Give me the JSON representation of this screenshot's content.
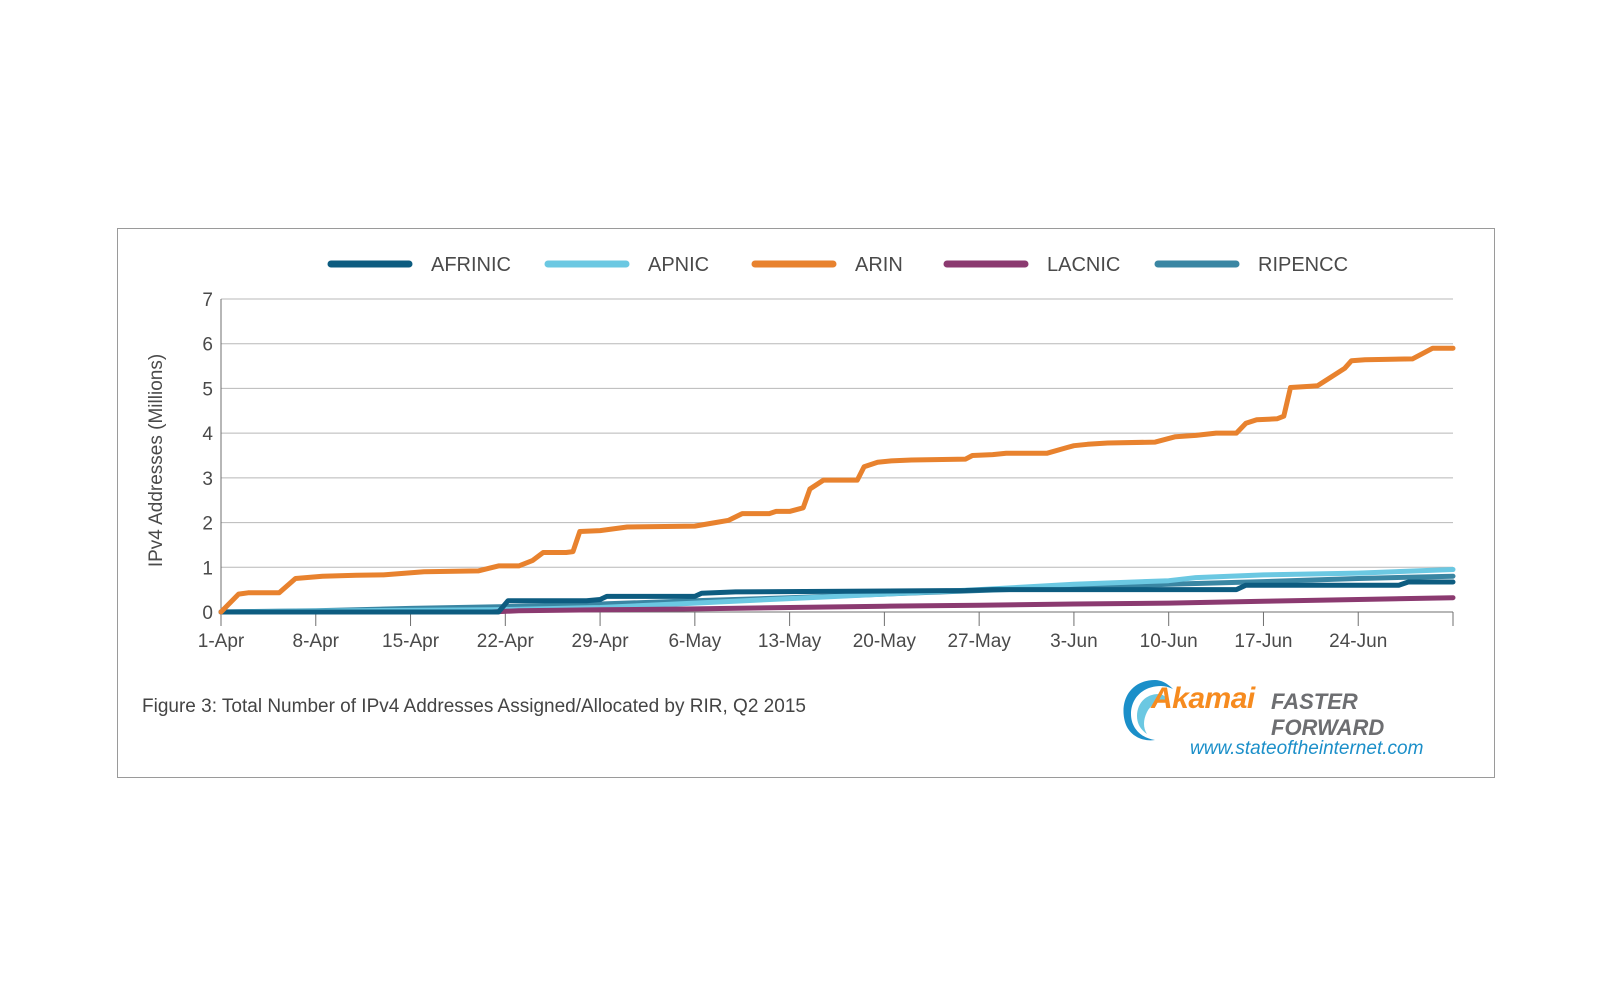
{
  "caption": "Figure 3: Total Number of IPv4 Addresses Assigned/Allocated by RIR, Q2 2015",
  "brand": {
    "name": "Akamai",
    "tagline": "FASTER FORWARD",
    "url": "www.stateoftheinternet.com",
    "logo_icon": "akamai-swoosh-icon",
    "colors": {
      "name": "#f68b1f",
      "tagline": "#6d6e71",
      "url": "#1b8fc9"
    }
  },
  "chart_data": {
    "type": "line",
    "title": "",
    "xlabel": "",
    "ylabel": "IPv4 Addresses (Millions)",
    "ylim": [
      0,
      7
    ],
    "yticks": [
      "0",
      "1",
      "2",
      "3",
      "4",
      "5",
      "6",
      "7"
    ],
    "x_range_days": [
      0,
      91
    ],
    "xticks": [
      {
        "label": "1-Apr",
        "day": 0
      },
      {
        "label": "8-Apr",
        "day": 7
      },
      {
        "label": "15-Apr",
        "day": 14
      },
      {
        "label": "22-Apr",
        "day": 21
      },
      {
        "label": "29-Apr",
        "day": 28
      },
      {
        "label": "6-May",
        "day": 35
      },
      {
        "label": "13-May",
        "day": 42
      },
      {
        "label": "20-May",
        "day": 49
      },
      {
        "label": "27-May",
        "day": 56
      },
      {
        "label": "3-Jun",
        "day": 63
      },
      {
        "label": "10-Jun",
        "day": 70
      },
      {
        "label": "17-Jun",
        "day": 77
      },
      {
        "label": "24-Jun",
        "day": 84
      }
    ],
    "grid": true,
    "legend_position": "top",
    "series": [
      {
        "name": "AFRINIC",
        "color": "#0d5c80",
        "points": [
          [
            0,
            0
          ],
          [
            8,
            0
          ],
          [
            20.5,
            0
          ],
          [
            21.2,
            0.25
          ],
          [
            27,
            0.25
          ],
          [
            28,
            0.28
          ],
          [
            28.5,
            0.35
          ],
          [
            35,
            0.35
          ],
          [
            35.5,
            0.42
          ],
          [
            38,
            0.45
          ],
          [
            55,
            0.48
          ],
          [
            57,
            0.5
          ],
          [
            75,
            0.5
          ],
          [
            75.7,
            0.6
          ],
          [
            87,
            0.6
          ],
          [
            87.7,
            0.67
          ],
          [
            91,
            0.67
          ]
        ]
      },
      {
        "name": "APNIC",
        "color": "#6bc8e2",
        "points": [
          [
            0,
            0
          ],
          [
            10,
            0.03
          ],
          [
            20,
            0.05
          ],
          [
            28,
            0.1
          ],
          [
            35,
            0.2
          ],
          [
            42,
            0.3
          ],
          [
            49,
            0.4
          ],
          [
            56,
            0.5
          ],
          [
            63,
            0.62
          ],
          [
            70,
            0.7
          ],
          [
            72,
            0.77
          ],
          [
            77,
            0.83
          ],
          [
            84,
            0.87
          ],
          [
            91,
            0.95
          ]
        ]
      },
      {
        "name": "ARIN",
        "color": "#e8822e",
        "points": [
          [
            0,
            0
          ],
          [
            1.3,
            0.4
          ],
          [
            2,
            0.43
          ],
          [
            4.3,
            0.43
          ],
          [
            5.5,
            0.75
          ],
          [
            7.5,
            0.8
          ],
          [
            10,
            0.82
          ],
          [
            12,
            0.83
          ],
          [
            15,
            0.9
          ],
          [
            19,
            0.92
          ],
          [
            20.5,
            1.03
          ],
          [
            22,
            1.03
          ],
          [
            23,
            1.15
          ],
          [
            23.8,
            1.33
          ],
          [
            25.5,
            1.33
          ],
          [
            26,
            1.35
          ],
          [
            26.5,
            1.8
          ],
          [
            28,
            1.82
          ],
          [
            30,
            1.9
          ],
          [
            35,
            1.92
          ],
          [
            36.5,
            2.0
          ],
          [
            37.5,
            2.05
          ],
          [
            38.5,
            2.2
          ],
          [
            40.5,
            2.2
          ],
          [
            41,
            2.25
          ],
          [
            42,
            2.25
          ],
          [
            43,
            2.33
          ],
          [
            43.5,
            2.75
          ],
          [
            44.5,
            2.95
          ],
          [
            47,
            2.95
          ],
          [
            47.5,
            3.25
          ],
          [
            48.5,
            3.35
          ],
          [
            49.5,
            3.38
          ],
          [
            51,
            3.4
          ],
          [
            55,
            3.42
          ],
          [
            55.5,
            3.5
          ],
          [
            57,
            3.52
          ],
          [
            58,
            3.55
          ],
          [
            61,
            3.55
          ],
          [
            62.5,
            3.68
          ],
          [
            63,
            3.72
          ],
          [
            64,
            3.75
          ],
          [
            65.5,
            3.78
          ],
          [
            69,
            3.8
          ],
          [
            70.5,
            3.92
          ],
          [
            72,
            3.95
          ],
          [
            73.5,
            4.0
          ],
          [
            75,
            4.0
          ],
          [
            75.7,
            4.22
          ],
          [
            76.5,
            4.3
          ],
          [
            78,
            4.32
          ],
          [
            78.5,
            4.38
          ],
          [
            79,
            5.02
          ],
          [
            80.5,
            5.05
          ],
          [
            81,
            5.06
          ],
          [
            83,
            5.45
          ],
          [
            83.5,
            5.62
          ],
          [
            84.5,
            5.64
          ],
          [
            86,
            5.65
          ],
          [
            88,
            5.66
          ],
          [
            89.5,
            5.9
          ],
          [
            91,
            5.9
          ]
        ]
      },
      {
        "name": "LACNIC",
        "color": "#8b3a70",
        "points": [
          [
            0,
            0
          ],
          [
            20,
            0
          ],
          [
            22,
            0.03
          ],
          [
            28,
            0.05
          ],
          [
            35,
            0.07
          ],
          [
            42,
            0.1
          ],
          [
            49,
            0.13
          ],
          [
            56,
            0.15
          ],
          [
            63,
            0.18
          ],
          [
            70,
            0.2
          ],
          [
            77,
            0.24
          ],
          [
            84,
            0.28
          ],
          [
            91,
            0.32
          ]
        ]
      },
      {
        "name": "RIPENCC",
        "color": "#3a86a3",
        "points": [
          [
            0,
            0
          ],
          [
            7,
            0.03
          ],
          [
            14,
            0.08
          ],
          [
            21,
            0.12
          ],
          [
            28,
            0.18
          ],
          [
            35,
            0.25
          ],
          [
            42,
            0.32
          ],
          [
            49,
            0.4
          ],
          [
            56,
            0.48
          ],
          [
            63,
            0.55
          ],
          [
            70,
            0.62
          ],
          [
            77,
            0.68
          ],
          [
            84,
            0.75
          ],
          [
            91,
            0.8
          ]
        ]
      }
    ]
  }
}
